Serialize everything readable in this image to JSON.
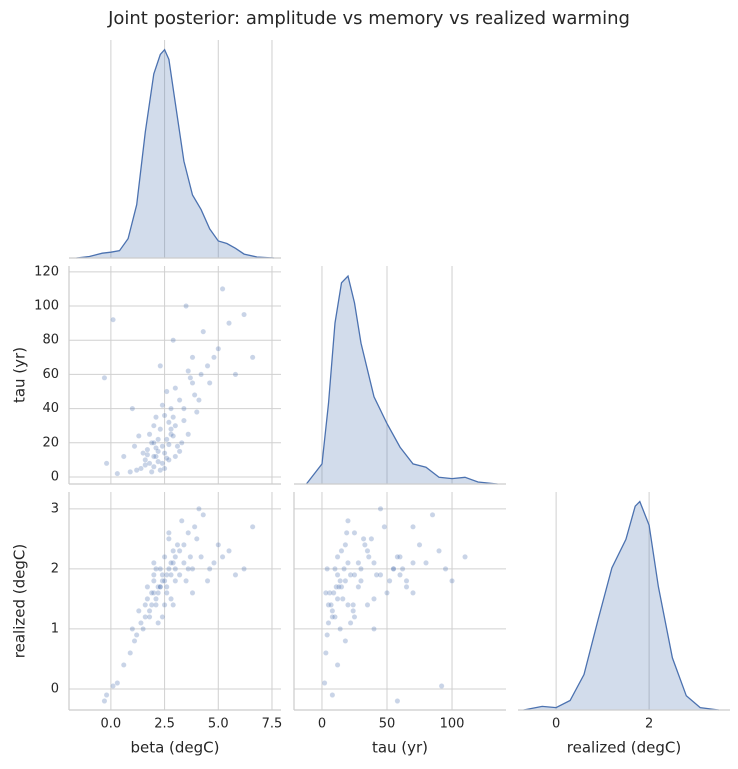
{
  "chart_data": {
    "type": "pairplot",
    "title": "Joint posterior: amplitude vs memory vs realized warming",
    "grid": true,
    "color": "#4c72b0",
    "variables": [
      {
        "name": "beta (degC)",
        "xlim": [
          -1.95,
          7.92
        ],
        "xticks": [
          {
            "value": 0,
            "label": "0.0"
          },
          2.5,
          {
            "value": 5,
            "label": "5.0"
          },
          7.5
        ],
        "values": [
          2.1,
          2.4,
          1.8,
          2.6,
          3.0,
          2.2,
          1.6,
          2.8,
          3.4,
          2.0,
          1.4,
          2.5,
          2.9,
          3.8,
          4.2,
          1.2,
          2.3,
          1.9,
          2.7,
          3.2,
          4.8,
          5.5,
          0.9,
          0.3,
          -0.2,
          2.1,
          2.6,
          3.1,
          3.6,
          2.0,
          1.7,
          2.4,
          2.2,
          1.5,
          3.0,
          2.8,
          4.0,
          4.5,
          5.0,
          6.2,
          6.6,
          5.8,
          3.3,
          3.7,
          1.0,
          0.1,
          -0.3,
          2.5,
          1.9,
          2.3,
          2.9,
          3.5,
          4.3,
          1.3,
          2.0,
          2.7,
          3.9,
          4.6,
          3.2,
          2.6,
          1.8,
          2.1,
          2.4,
          3.0,
          5.2,
          1.6,
          2.8,
          2.2,
          3.4,
          0.6,
          1.1,
          2.5,
          3.8,
          4.1,
          2.3,
          1.7,
          2.9,
          2.0,
          3.6,
          2.7
        ],
        "kde": {
          "x": [
            -1.6,
            -1.0,
            -0.4,
            0,
            0.4,
            0.8,
            1.2,
            1.6,
            2.0,
            2.3,
            2.5,
            2.7,
            3.0,
            3.4,
            3.8,
            4.2,
            4.6,
            5.0,
            5.4,
            5.8,
            6.2,
            6.8,
            7.6
          ],
          "density": [
            0,
            0.003,
            0.01,
            0.012,
            0.015,
            0.04,
            0.11,
            0.26,
            0.38,
            0.42,
            0.43,
            0.41,
            0.32,
            0.2,
            0.13,
            0.1,
            0.06,
            0.035,
            0.03,
            0.02,
            0.008,
            0.002,
            0
          ],
          "ylim": [
            0,
            0.45
          ]
        }
      },
      {
        "name": "tau (yr)",
        "xlim": [
          -21.5,
          141.5
        ],
        "ylim": [
          -4.1,
          123.4
        ],
        "xticks": [
          0,
          50,
          100
        ],
        "yticks": [
          0,
          20,
          40,
          60,
          80,
          100,
          120
        ],
        "values": [
          12,
          18,
          8,
          22,
          30,
          15,
          10,
          25,
          40,
          6,
          5,
          14,
          35,
          55,
          60,
          4,
          28,
          20,
          10,
          45,
          70,
          90,
          3,
          2,
          8,
          35,
          50,
          18,
          25,
          12,
          16,
          8,
          22,
          14,
          12,
          40,
          38,
          65,
          75,
          95,
          70,
          60,
          20,
          58,
          40,
          92,
          58,
          5,
          3,
          65,
          80,
          100,
          85,
          24,
          30,
          19,
          48,
          55,
          15,
          11,
          25,
          17,
          42,
          52,
          110,
          7,
          28,
          9,
          33,
          12,
          18,
          36,
          70,
          45,
          4,
          13,
          24,
          20,
          62,
          32
        ],
        "kde": {
          "x": [
            -12,
            0,
            5,
            10,
            15,
            20,
            25,
            30,
            40,
            50,
            60,
            70,
            80,
            90,
            100,
            110,
            120,
            135
          ],
          "density": [
            0,
            0.003,
            0.012,
            0.024,
            0.03,
            0.031,
            0.027,
            0.021,
            0.013,
            0.009,
            0.0055,
            0.003,
            0.0025,
            0.001,
            0.0008,
            0.001,
            0.0003,
            0
          ],
          "ylim": [
            0,
            0.0325
          ]
        }
      },
      {
        "name": "realized (degC)",
        "xlim": [
          -0.82,
          3.74
        ],
        "ylim": [
          -0.35,
          3.28
        ],
        "xticks": [
          0,
          2
        ],
        "yticks": [
          0,
          1,
          2,
          3
        ],
        "values": [
          1.5,
          1.8,
          1.3,
          1.9,
          2.0,
          1.7,
          1.2,
          1.9,
          2.1,
          1.6,
          1.1,
          1.8,
          2.3,
          2.0,
          2.2,
          0.9,
          1.7,
          1.4,
          2.0,
          1.9,
          2.1,
          2.3,
          0.6,
          0.1,
          -0.1,
          1.4,
          1.6,
          2.4,
          2.6,
          1.9,
          1.5,
          1.2,
          1.1,
          1.0,
          2.2,
          1.5,
          2.5,
          1.8,
          2.4,
          2.0,
          2.7,
          1.9,
          2.8,
          2.2,
          1.0,
          0.05,
          -0.2,
          1.4,
          1.6,
          1.7,
          2.1,
          1.8,
          2.9,
          1.3,
          1.8,
          2.6,
          2.7,
          2.0,
          2.3,
          1.7,
          1.2,
          2.0,
          1.9,
          1.8,
          2.2,
          1.4,
          2.1,
          1.6,
          2.4,
          0.4,
          0.8,
          2.2,
          1.6,
          3.0,
          2.0,
          1.7,
          1.4,
          2.1,
          2.0,
          2.5
        ],
        "kde": {
          "x": [
            -0.7,
            -0.3,
            0,
            0.3,
            0.6,
            0.9,
            1.2,
            1.5,
            1.7,
            1.8,
            2.0,
            2.2,
            2.5,
            2.8,
            3.1,
            3.5
          ],
          "density": [
            0,
            0.015,
            0.01,
            0.04,
            0.15,
            0.38,
            0.6,
            0.72,
            0.86,
            0.88,
            0.78,
            0.52,
            0.22,
            0.06,
            0.01,
            0
          ],
          "ylim": [
            0,
            0.92
          ]
        }
      }
    ]
  }
}
